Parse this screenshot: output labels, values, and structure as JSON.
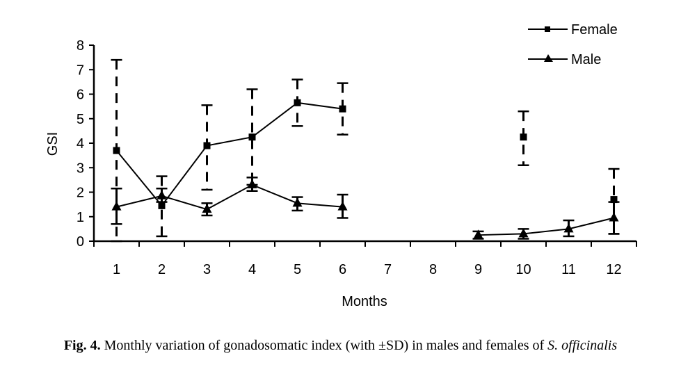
{
  "chart_data": {
    "type": "line",
    "title": "",
    "xlabel": "Months",
    "ylabel": "GSI",
    "ylim": [
      0,
      8
    ],
    "yticks": [
      "0",
      "1",
      "2",
      "3",
      "4",
      "5",
      "6",
      "7",
      "8"
    ],
    "categories": [
      "1",
      "2",
      "3",
      "4",
      "5",
      "6",
      "7",
      "8",
      "9",
      "10",
      "11",
      "12"
    ],
    "grid": false,
    "legend_position": "top-right",
    "series": [
      {
        "name": "Female",
        "marker": "square",
        "values": [
          3.7,
          1.45,
          3.9,
          4.25,
          5.65,
          5.4,
          null,
          null,
          null,
          4.25,
          null,
          1.7
        ],
        "sd_upper": [
          7.4,
          2.65,
          5.55,
          6.2,
          6.6,
          6.45,
          null,
          null,
          null,
          5.3,
          null,
          2.95
        ],
        "sd_lower": [
          0.0,
          0.2,
          2.1,
          2.3,
          4.7,
          4.35,
          null,
          null,
          null,
          3.1,
          null,
          0.3
        ]
      },
      {
        "name": "Male",
        "marker": "triangle",
        "values": [
          1.4,
          1.85,
          1.3,
          2.3,
          1.55,
          1.4,
          null,
          null,
          0.25,
          0.3,
          0.5,
          0.95
        ],
        "sd_upper": [
          2.15,
          2.15,
          1.55,
          2.6,
          1.8,
          1.9,
          null,
          null,
          0.4,
          0.5,
          0.85,
          1.6
        ],
        "sd_lower": [
          0.7,
          1.6,
          1.05,
          2.05,
          1.25,
          0.95,
          null,
          null,
          0.1,
          0.1,
          0.2,
          0.3
        ]
      }
    ]
  },
  "caption": {
    "label": "Fig. 4.",
    "text": " Monthly variation of gonadosomatic index (with ±SD) in males and females of ",
    "species": "S. officinalis"
  }
}
